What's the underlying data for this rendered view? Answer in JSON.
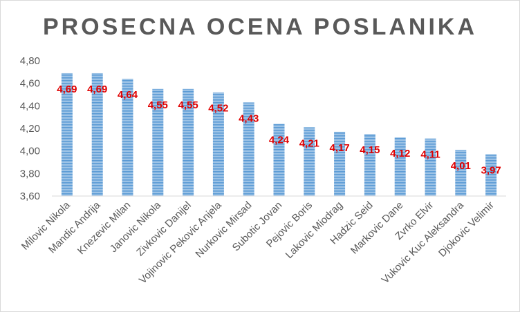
{
  "chart_data": {
    "type": "bar",
    "title": "PROSECNA OCENA POSLANIKA",
    "categories": [
      "Milovic Nikola",
      "Mandic Andrija",
      "Knezevic Milan",
      "Janovic Nikola",
      "Zivkovic Danijel",
      "Vojinovic Pekovic Anjela",
      "Nurkovic Mirsad",
      "Subotic Jovan",
      "Pejovic Boris",
      "Lakovic Miodrag",
      "Hadzic Seid",
      "Markovic Dane",
      "Zvrko Elvir",
      "Vukovic Kuc Aleksandra",
      "Djokovic Velimir"
    ],
    "values": [
      4.69,
      4.69,
      4.64,
      4.55,
      4.55,
      4.52,
      4.43,
      4.24,
      4.21,
      4.17,
      4.15,
      4.12,
      4.11,
      4.01,
      3.97
    ],
    "data_labels": [
      "4,69",
      "4,69",
      "4,64",
      "4,55",
      "4,55",
      "4,52",
      "4,43",
      "4,24",
      "4,21",
      "4,17",
      "4,15",
      "4,12",
      "4,11",
      "4,01",
      "3,97"
    ],
    "ylim": [
      3.6,
      4.8
    ],
    "yticks": [
      "3,60",
      "3,80",
      "4,00",
      "4,20",
      "4,40",
      "4,60",
      "4,80"
    ],
    "xlabel": "",
    "ylabel": "",
    "grid": false,
    "legend": "none",
    "colors": {
      "bar_fill": "#9dc3e6",
      "bar_stripe": "#5b9bd5",
      "data_label": "#e00000",
      "axis_text": "#595959"
    }
  }
}
